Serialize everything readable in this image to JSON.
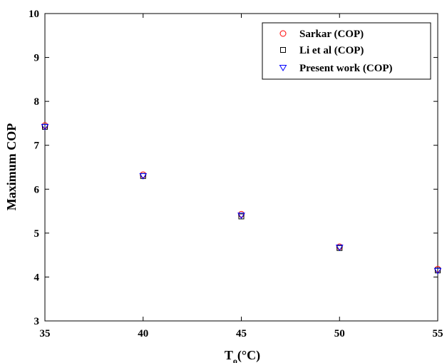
{
  "chart_data": {
    "type": "scatter",
    "xlabel": "T",
    "xlabel_subscript": "o",
    "xlabel_unit": "(°C)",
    "ylabel": "Maximum COP",
    "xlim": [
      35,
      55
    ],
    "ylim": [
      3,
      10
    ],
    "xticks": [
      "35",
      "40",
      "45",
      "50",
      "55"
    ],
    "yticks": [
      "3",
      "4",
      "5",
      "6",
      "7",
      "8",
      "9",
      "10"
    ],
    "grid": false,
    "legend_position": "top-right",
    "x": [
      35,
      40,
      45,
      50,
      55
    ],
    "series": [
      {
        "name": "Sarkar (COP)",
        "marker": "circle",
        "color": "#ff0000",
        "values": [
          7.45,
          6.33,
          5.43,
          4.69,
          4.18
        ]
      },
      {
        "name": "Li et al (COP)",
        "marker": "square",
        "color": "#000000",
        "values": [
          7.42,
          6.3,
          5.38,
          4.66,
          4.15
        ]
      },
      {
        "name": "Present work (COP)",
        "marker": "triangle-down",
        "color": "#0000ff",
        "values": [
          7.42,
          6.3,
          5.4,
          4.67,
          4.14
        ]
      }
    ]
  }
}
